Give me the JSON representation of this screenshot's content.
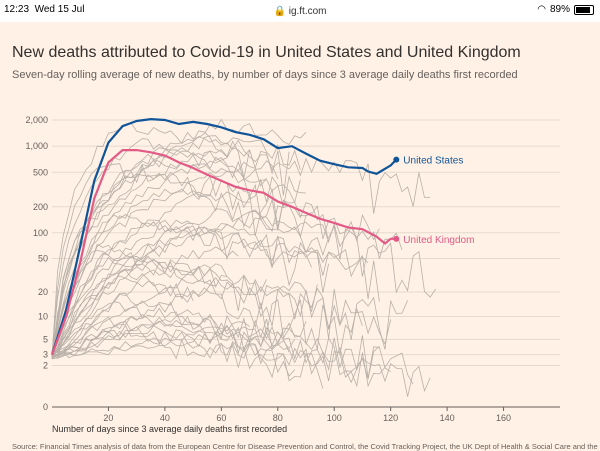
{
  "status_bar": {
    "time": "12:23",
    "date": "Wed 15 Jul",
    "url": "ig.ft.com",
    "battery": "89%",
    "icons": [
      "wifi-icon",
      "lock-icon",
      "battery-icon"
    ]
  },
  "title": "New deaths attributed to Covid-19 in United States and United Kingdom",
  "subtitle": "Seven-day rolling average of new deaths, by number of days since 3 average daily deaths first recorded",
  "source": "Source: Financial Times analysis of data from the European Centre for Disease Prevention and Control, the Covid Tracking Project, the UK Dept of Health & Social Care and the Spanish",
  "chart_data": {
    "type": "line",
    "xlabel": "Number of days since 3 average daily deaths first recorded",
    "ylabel": "",
    "y_scale": "log",
    "xlim": [
      0,
      180
    ],
    "x_ticks": [
      20,
      40,
      60,
      80,
      100,
      120,
      140,
      160
    ],
    "y_ticks": [
      0,
      2,
      3,
      5,
      10,
      20,
      50,
      100,
      200,
      500,
      1000,
      2000
    ],
    "y_tick_labels": [
      "0",
      "2",
      "3",
      "5",
      "10",
      "20",
      "50",
      "100",
      "200",
      "500",
      "1,000",
      "2,000"
    ],
    "colors": {
      "United States": "#0f5499",
      "United Kingdom": "#e25a85",
      "other": "#b8b0a8",
      "background": "#fff1e5"
    },
    "series": [
      {
        "name": "United States",
        "x": [
          0,
          5,
          10,
          15,
          20,
          25,
          30,
          35,
          40,
          45,
          50,
          55,
          60,
          65,
          70,
          75,
          80,
          85,
          90,
          95,
          100,
          105,
          110,
          112,
          115,
          120,
          122
        ],
        "y": [
          3,
          12,
          70,
          400,
          1100,
          1700,
          1950,
          2050,
          2000,
          1800,
          1900,
          1800,
          1650,
          1450,
          1350,
          1200,
          950,
          1000,
          820,
          680,
          620,
          570,
          560,
          510,
          480,
          600,
          700
        ]
      },
      {
        "name": "United Kingdom",
        "x": [
          0,
          5,
          10,
          15,
          20,
          25,
          30,
          35,
          40,
          45,
          50,
          55,
          60,
          65,
          70,
          75,
          80,
          85,
          90,
          95,
          100,
          105,
          110,
          115,
          118,
          120,
          122
        ],
        "y": [
          3,
          10,
          45,
          250,
          650,
          900,
          900,
          850,
          780,
          650,
          560,
          470,
          400,
          340,
          310,
          290,
          230,
          200,
          170,
          145,
          130,
          115,
          110,
          90,
          75,
          85,
          85
        ]
      }
    ],
    "other_country_lines": 40
  }
}
